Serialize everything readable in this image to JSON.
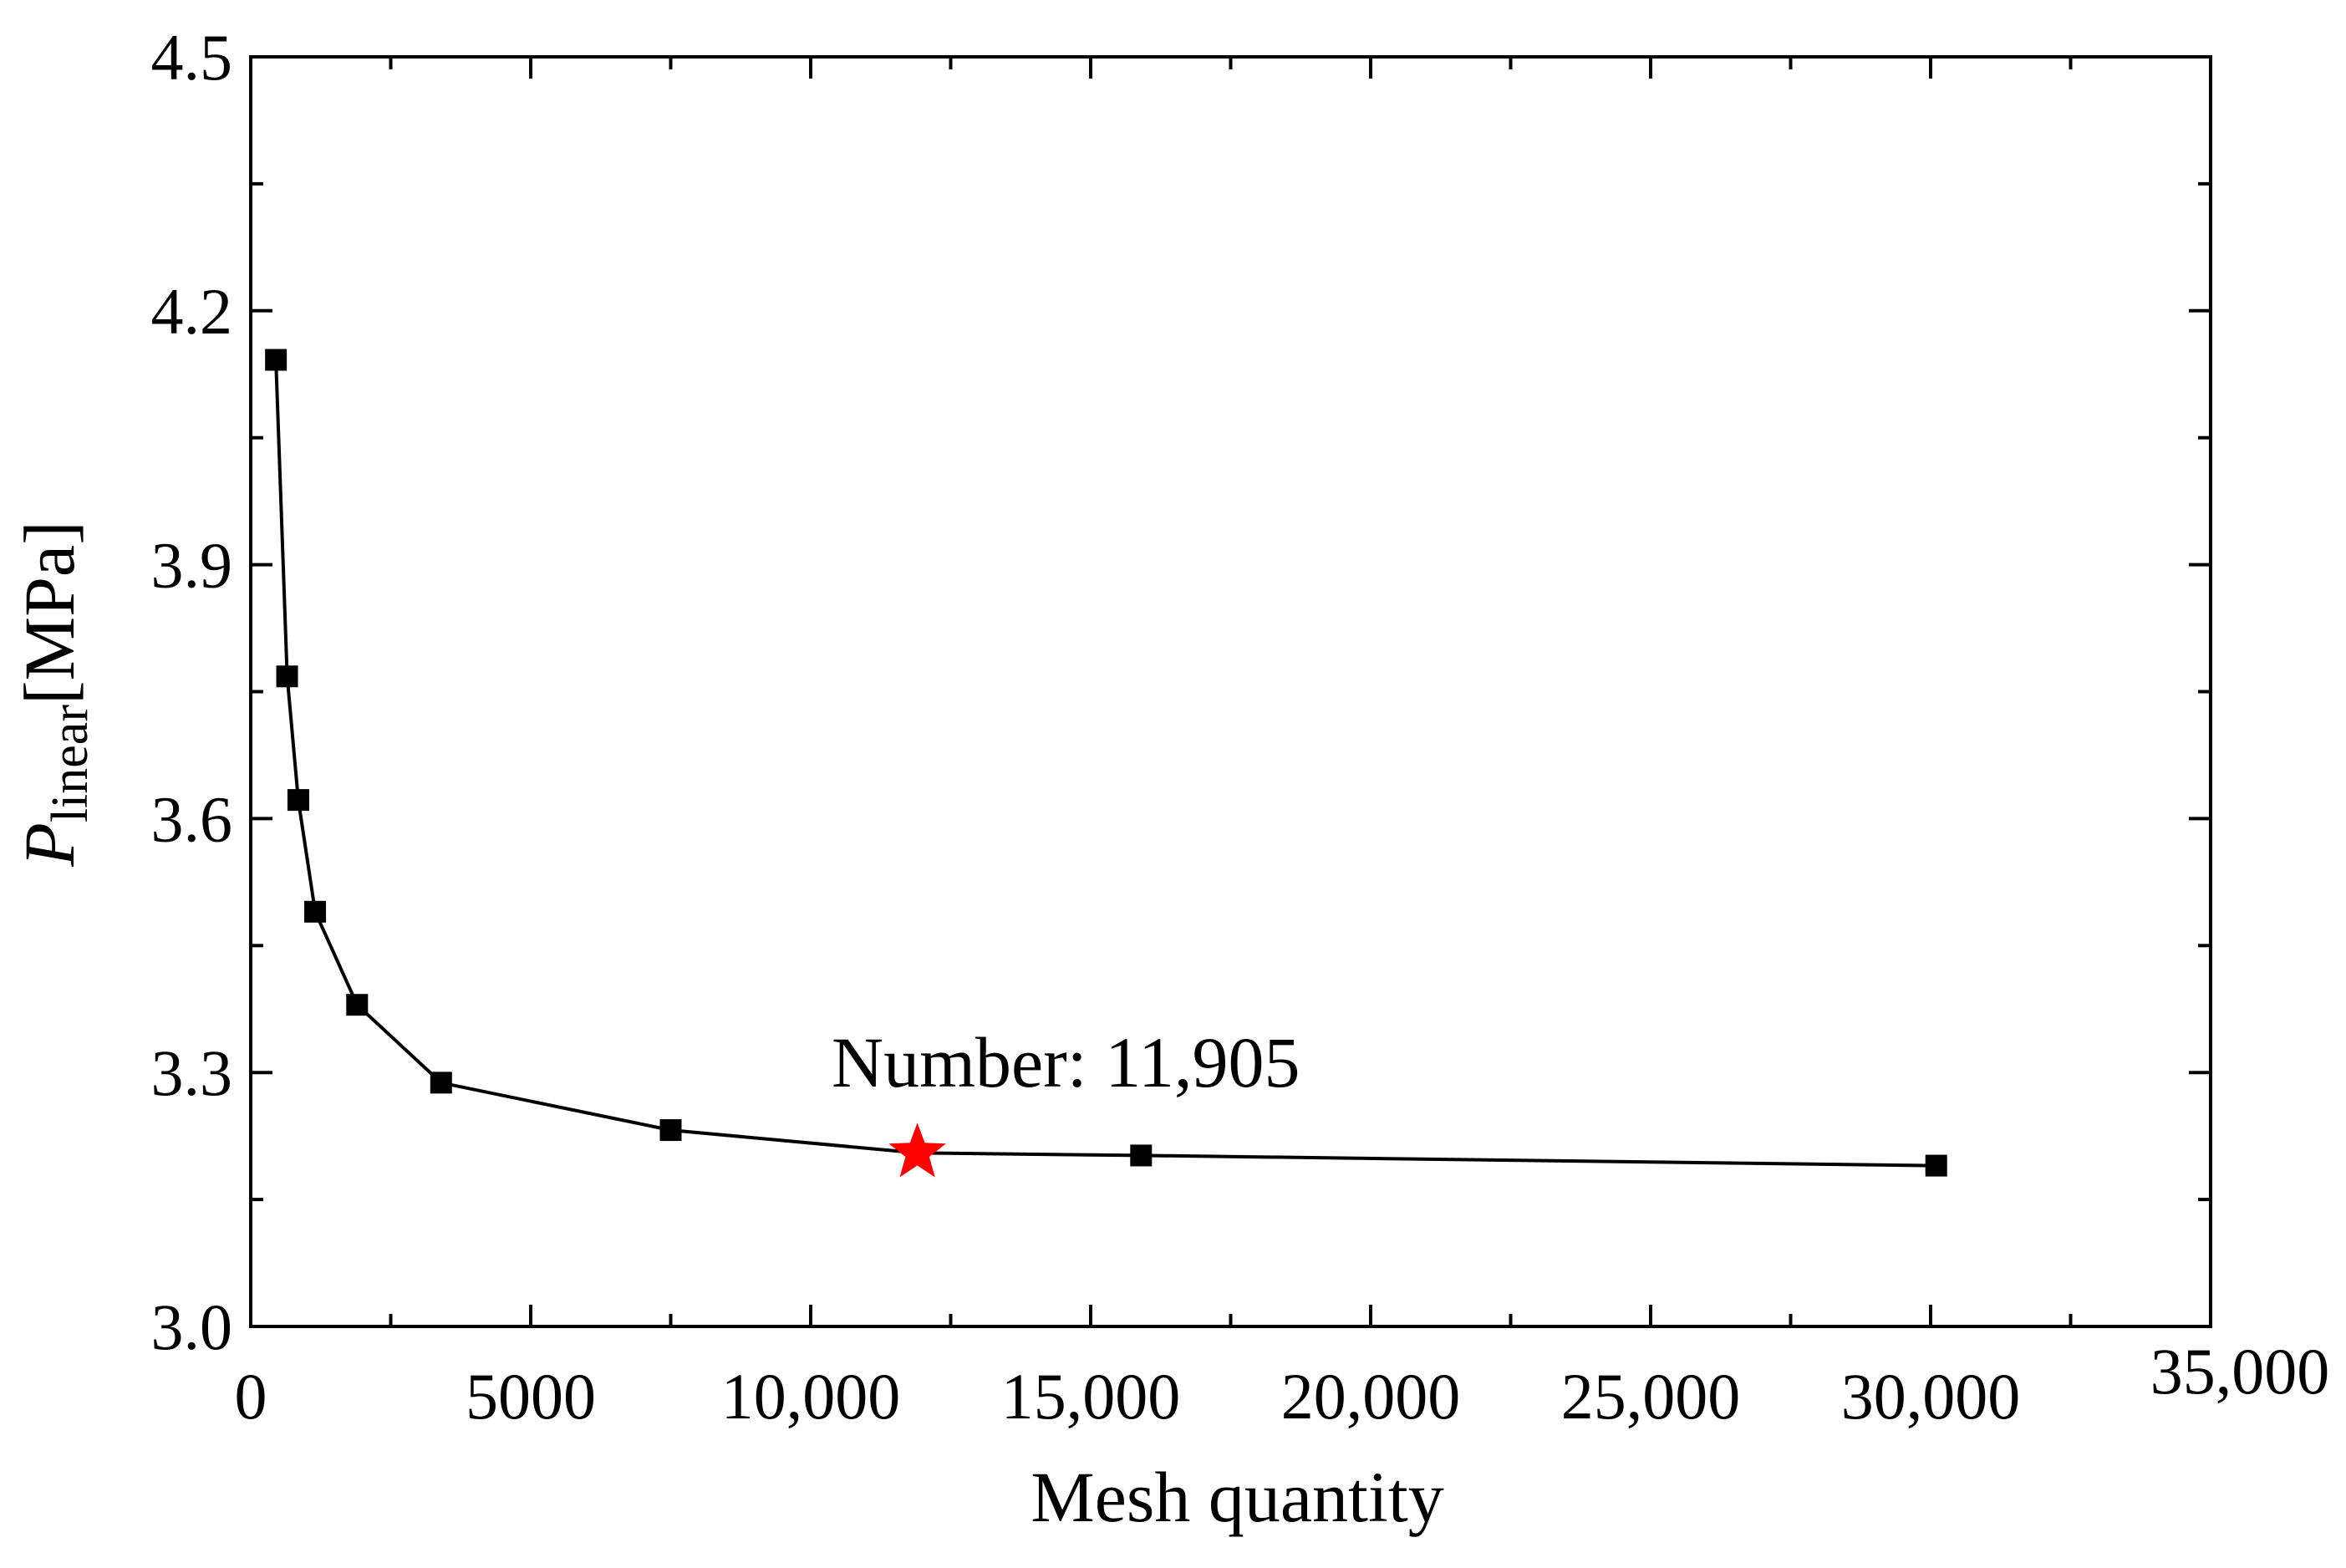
{
  "chart_data": {
    "type": "line",
    "xlabel": "Mesh quantity",
    "ylabel": {
      "symbol": "P",
      "subscript": "linear",
      "unit": "[MPa]"
    },
    "xlim": [
      0,
      35000
    ],
    "ylim": [
      3.0,
      4.5
    ],
    "x_ticks": [
      {
        "value": 0,
        "label": "0"
      },
      {
        "value": 5000,
        "label": "5000"
      },
      {
        "value": 10000,
        "label": "10,000"
      },
      {
        "value": 15000,
        "label": "15,000"
      },
      {
        "value": 20000,
        "label": "20,000"
      },
      {
        "value": 25000,
        "label": "25,000"
      },
      {
        "value": 30000,
        "label": "30,000"
      },
      {
        "value": 35000,
        "label": "35,000"
      }
    ],
    "y_ticks": [
      {
        "value": 3.0,
        "label": "3.0"
      },
      {
        "value": 3.3,
        "label": "3.3"
      },
      {
        "value": 3.6,
        "label": "3.6"
      },
      {
        "value": 3.9,
        "label": "3.9"
      },
      {
        "value": 4.2,
        "label": "4.2"
      },
      {
        "value": 4.5,
        "label": "4.5"
      }
    ],
    "grid": false,
    "series": [
      {
        "marker": "square",
        "color": "#000000",
        "x": [
          450,
          650,
          850,
          1150,
          1900,
          3400,
          7500,
          11905,
          15900,
          30100
        ],
        "y": [
          4.142,
          3.768,
          3.622,
          3.49,
          3.38,
          3.288,
          3.232,
          3.205,
          3.202,
          3.19
        ]
      }
    ],
    "highlight": {
      "x": 11905,
      "y": 3.205,
      "marker": "star",
      "color": "#ff0000",
      "label": "Number: 11,905"
    }
  }
}
